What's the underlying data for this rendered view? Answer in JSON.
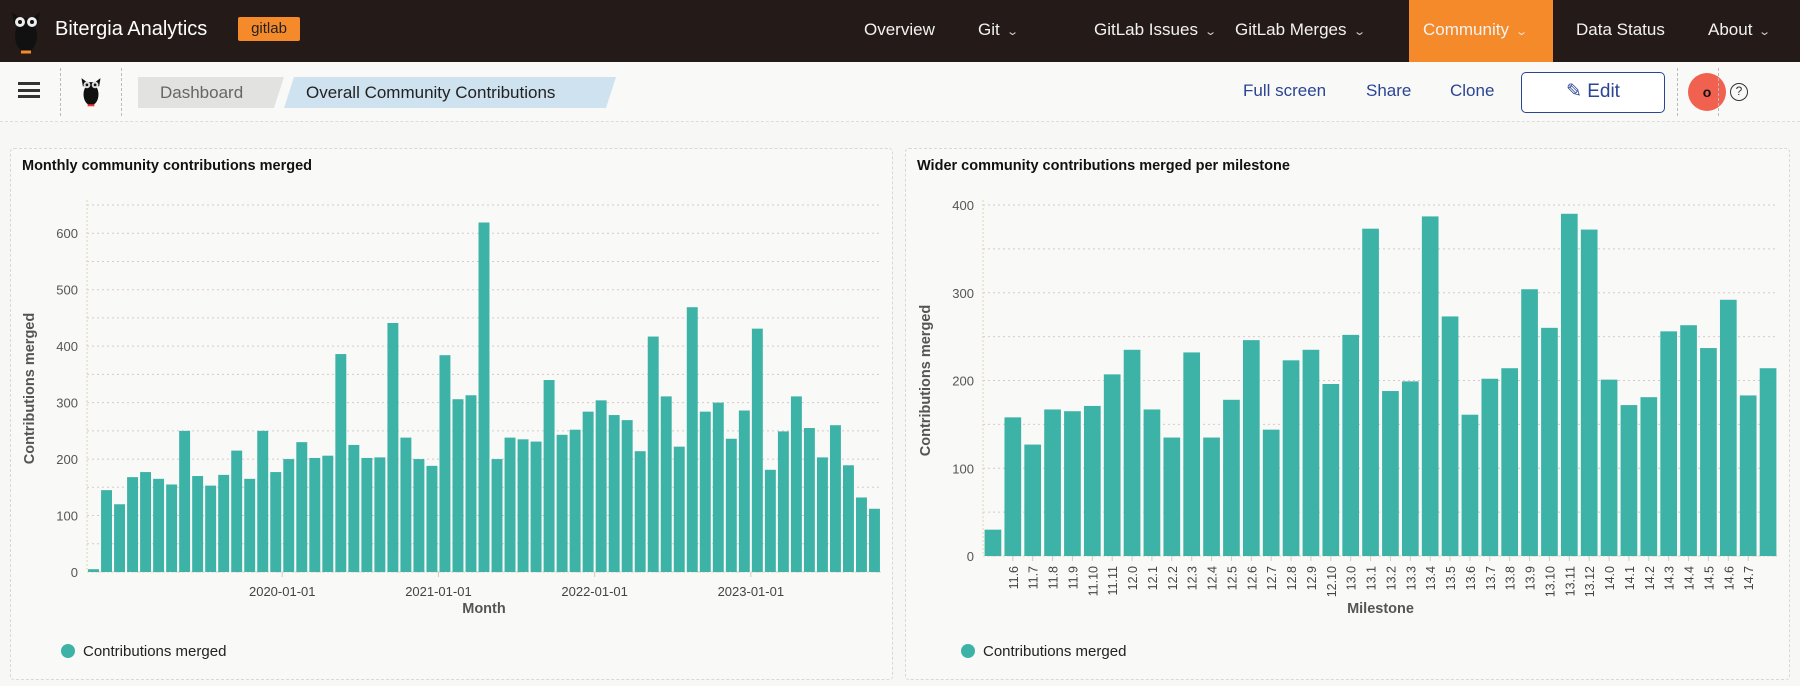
{
  "topnav": {
    "brand": "Bitergia Analytics",
    "badge": "gitlab",
    "items": [
      {
        "label": "Overview",
        "dropdown": false
      },
      {
        "label": "Git",
        "dropdown": true
      },
      {
        "label": "GitLab Issues",
        "dropdown": true
      },
      {
        "label": "GitLab Merges",
        "dropdown": true
      },
      {
        "label": "Community",
        "dropdown": true,
        "active": true
      },
      {
        "label": "Data Status",
        "dropdown": false
      },
      {
        "label": "About",
        "dropdown": true
      }
    ],
    "accent": "#f58a2b"
  },
  "breadcrumb": [
    "Dashboard",
    "Overall Community Contributions"
  ],
  "actions": {
    "fullscreen": "Full screen",
    "share": "Share",
    "clone": "Clone",
    "edit": "Edit"
  },
  "avatar": "o",
  "help_icon": "?",
  "chart_data": [
    {
      "type": "bar",
      "title": "Monthly community contributions merged",
      "xlabel": "Month",
      "ylabel": "Contributions merged",
      "ylim": [
        0,
        650
      ],
      "yticks": [
        0,
        100,
        200,
        300,
        400,
        500,
        600
      ],
      "grid": true,
      "legend": "bottom-left",
      "color": "#3db3a8",
      "x_tick_labels": {
        "2020-01": "2020-01-01",
        "2021-01": "2021-01-01",
        "2022-01": "2022-01-01",
        "2023-01": "2023-01-01"
      },
      "categories": [
        "2018-10",
        "2018-11",
        "2018-12",
        "2019-01",
        "2019-02",
        "2019-03",
        "2019-04",
        "2019-05",
        "2019-06",
        "2019-07",
        "2019-08",
        "2019-09",
        "2019-10",
        "2019-11",
        "2019-12",
        "2020-01",
        "2020-02",
        "2020-03",
        "2020-04",
        "2020-05",
        "2020-06",
        "2020-07",
        "2020-08",
        "2020-09",
        "2020-10",
        "2020-11",
        "2020-12",
        "2021-01",
        "2021-02",
        "2021-03",
        "2021-04",
        "2021-05",
        "2021-06",
        "2021-07",
        "2021-08",
        "2021-09",
        "2021-10",
        "2021-11",
        "2021-12",
        "2022-01",
        "2022-02",
        "2022-03",
        "2022-04",
        "2022-05",
        "2022-06",
        "2022-07",
        "2022-08",
        "2022-09",
        "2022-10",
        "2022-11",
        "2022-12",
        "2023-01",
        "2023-02",
        "2023-03",
        "2023-04",
        "2023-05",
        "2023-06",
        "2023-07",
        "2023-08",
        "2023-09",
        "2023-10"
      ],
      "series": [
        {
          "name": "Contributions merged",
          "values": [
            5,
            145,
            120,
            168,
            177,
            165,
            155,
            250,
            170,
            153,
            172,
            215,
            165,
            250,
            177,
            200,
            230,
            202,
            206,
            386,
            225,
            202,
            203,
            441,
            238,
            200,
            188,
            384,
            306,
            313,
            619,
            200,
            238,
            235,
            231,
            340,
            243,
            252,
            284,
            304,
            278,
            269,
            214,
            417,
            311,
            222,
            469,
            284,
            300,
            236,
            286,
            431,
            181,
            249,
            311,
            255,
            203,
            260,
            189,
            132,
            112
          ]
        }
      ]
    },
    {
      "type": "bar",
      "title": "Wider community contributions merged per milestone",
      "xlabel": "Milestone",
      "ylabel": "Contributions merged",
      "ylim": [
        0,
        400
      ],
      "yticks": [
        0,
        100,
        200,
        300,
        400
      ],
      "grid": true,
      "legend": "bottom-left",
      "color": "#3db3a8",
      "categories": [
        "",
        "11.6",
        "11.7",
        "11.8",
        "11.9",
        "11.10",
        "11.11",
        "12.0",
        "12.1",
        "12.2",
        "12.3",
        "12.4",
        "12.5",
        "12.6",
        "12.7",
        "12.8",
        "12.9",
        "12.10",
        "13.0",
        "13.1",
        "13.2",
        "13.3",
        "13.4",
        "13.5",
        "13.6",
        "13.7",
        "13.8",
        "13.9",
        "13.10",
        "13.11",
        "13.12",
        "14.0",
        "14.1",
        "14.2",
        "14.3",
        "14.4",
        "14.5",
        "14.6",
        "14.7",
        ""
      ],
      "series": [
        {
          "name": "Contributions merged",
          "values": [
            30,
            158,
            127,
            167,
            165,
            171,
            207,
            235,
            167,
            135,
            232,
            135,
            178,
            246,
            144,
            223,
            235,
            196,
            252,
            373,
            188,
            199,
            387,
            273,
            161,
            202,
            214,
            304,
            260,
            390,
            372,
            201,
            172,
            181,
            256,
            263,
            237,
            292,
            183,
            214
          ]
        }
      ]
    }
  ]
}
